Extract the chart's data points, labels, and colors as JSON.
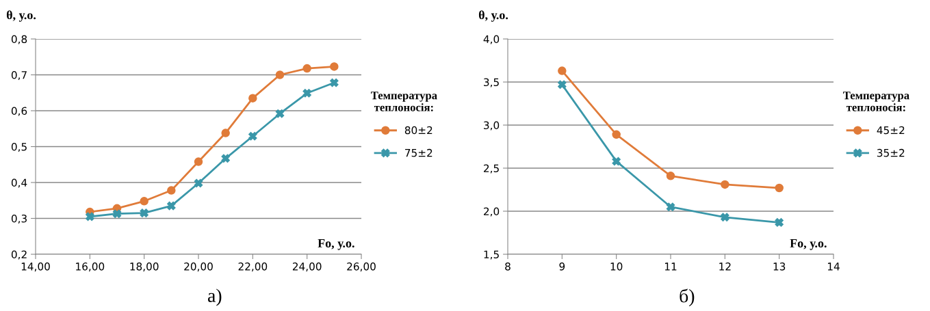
{
  "chart_data": [
    {
      "type": "line",
      "xlabel": "Fo, у.о.",
      "ylabel": "θ, у.о.",
      "legend_title": "Температура теплоносія:",
      "annotations": [
        "а)"
      ],
      "x": [
        16,
        17,
        18,
        19,
        20,
        21,
        22,
        23,
        24,
        25
      ],
      "series": [
        {
          "name": "80±2",
          "color": "#e07b39",
          "marker": "circle",
          "values": [
            0.318,
            0.328,
            0.348,
            0.378,
            0.458,
            0.538,
            0.635,
            0.7,
            0.718,
            0.723
          ]
        },
        {
          "name": "75±2",
          "color": "#3a97a9",
          "marker": "cross",
          "values": [
            0.305,
            0.313,
            0.315,
            0.335,
            0.398,
            0.467,
            0.529,
            0.592,
            0.649,
            0.678
          ]
        }
      ],
      "xlim": [
        14,
        26
      ],
      "xticks": [
        {
          "value": 14,
          "label": "14,00"
        },
        {
          "value": 16,
          "label": "16,00"
        },
        {
          "value": 18,
          "label": "18,00"
        },
        {
          "value": 20,
          "label": "20,00"
        },
        {
          "value": 22,
          "label": "22,00"
        },
        {
          "value": 24,
          "label": "24,00"
        },
        {
          "value": 26,
          "label": "26,00"
        }
      ],
      "ylim": [
        0.2,
        0.8
      ],
      "yticks": [
        {
          "value": 0.2,
          "label": "0,2"
        },
        {
          "value": 0.3,
          "label": "0,3"
        },
        {
          "value": 0.4,
          "label": "0,4"
        },
        {
          "value": 0.5,
          "label": "0,5"
        },
        {
          "value": 0.6,
          "label": "0,6"
        },
        {
          "value": 0.7,
          "label": "0,7"
        },
        {
          "value": 0.8,
          "label": "0,8"
        }
      ],
      "grid": "y",
      "legend": "right",
      "line_style": "solid"
    },
    {
      "type": "line",
      "xlabel": "Fo, у.о.",
      "ylabel": "θ, у.о.",
      "legend_title": "Температура теплоносія:",
      "annotations": [
        "б)"
      ],
      "x": [
        9,
        10,
        11,
        12,
        13
      ],
      "series": [
        {
          "name": "45±2",
          "color": "#e07b39",
          "marker": "circle",
          "values": [
            3.63,
            2.89,
            2.41,
            2.31,
            2.27
          ]
        },
        {
          "name": "35±2",
          "color": "#3a97a9",
          "marker": "cross",
          "values": [
            3.47,
            2.58,
            2.05,
            1.93,
            1.87
          ]
        }
      ],
      "xlim": [
        8,
        14
      ],
      "xticks": [
        8,
        9,
        10,
        11,
        12,
        13,
        14
      ],
      "ylim": [
        1.5,
        4.0
      ],
      "yticks": [
        {
          "value": 1.5,
          "label": "1,5"
        },
        {
          "value": 2.0,
          "label": "2,0"
        },
        {
          "value": 2.5,
          "label": "2,5"
        },
        {
          "value": 3.0,
          "label": "3,0"
        },
        {
          "value": 3.5,
          "label": "3,5"
        },
        {
          "value": 4.0,
          "label": "4,0"
        }
      ],
      "grid": "y",
      "legend": "right",
      "line_style": "solid"
    }
  ]
}
